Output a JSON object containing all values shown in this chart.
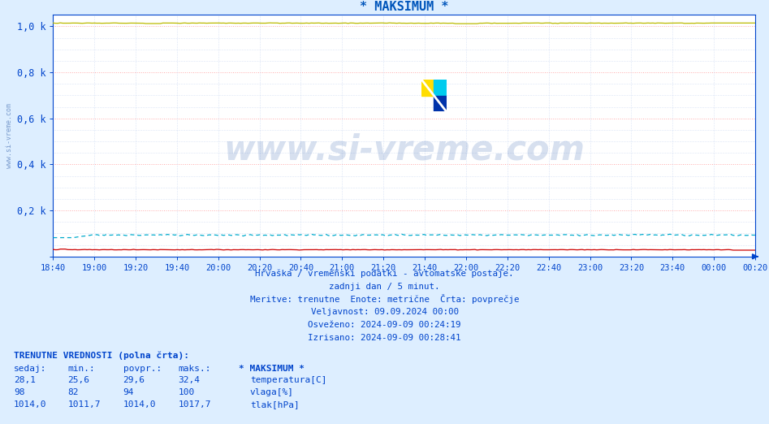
{
  "title": "* MAKSIMUM *",
  "title_color": "#0055bb",
  "bg_color": "#ddeeff",
  "plot_bg_color": "#ffffff",
  "ytick_labels": [
    "",
    "0,2 k",
    "0,4 k",
    "0,6 k",
    "0,8 k",
    "1,0 k"
  ],
  "ytick_values": [
    0,
    200,
    400,
    600,
    800,
    1000
  ],
  "ylim": [
    0,
    1050
  ],
  "xtick_labels": [
    "18:40",
    "19:00",
    "19:20",
    "19:40",
    "20:00",
    "20:20",
    "20:40",
    "21:00",
    "21:20",
    "21:40",
    "22:00",
    "22:20",
    "22:40",
    "23:00",
    "23:20",
    "23:40",
    "00:00",
    "00:20"
  ],
  "n_points": 289,
  "temp_color": "#cc0000",
  "humidity_color": "#00aacc",
  "pressure_color": "#bbbb00",
  "axis_color": "#0044cc",
  "grid_color_major": "#ffaaaa",
  "grid_color_minor": "#bbccee",
  "watermark": "www.si-vreme.com",
  "watermark_color": "#7799cc",
  "watermark_large_color": "#2255aa",
  "subtitle_lines": [
    "Hrvaška / vremenski podatki - avtomatske postaje.",
    "zadnji dan / 5 minut.",
    "Meritve: trenutne  Enote: metrične  Črta: povprečje",
    "Veljavnost: 09.09.2024 00:00",
    "Osveženo: 2024-09-09 00:24:19",
    "Izrisano: 2024-09-09 00:28:41"
  ],
  "footer_title": "TRENUTNE VREDNOSTI (polna črta):",
  "col_headers": [
    "sedaj:",
    "min.:",
    "povpr.:",
    "maks.:",
    "* MAKSIMUM *"
  ],
  "row1": [
    "28,1",
    "25,6",
    "29,6",
    "32,4"
  ],
  "row2": [
    "98",
    "82",
    "94",
    "100"
  ],
  "row3": [
    "1014,0",
    "1011,7",
    "1014,0",
    "1017,7"
  ],
  "row1_label": "temperatura[C]",
  "row2_label": "vlaga[%]",
  "row3_label": "tlak[hPa]",
  "temp_min": 25.6,
  "temp_avg": 29.6,
  "temp_max": 32.4,
  "humid_min": 82,
  "humid_avg": 94,
  "humid_max": 100,
  "press_min": 1011.7,
  "press_avg": 1014.0,
  "press_max": 1017.7,
  "logo_yellow": "#ffdd00",
  "logo_cyan": "#00ccee",
  "logo_blue": "#0033aa"
}
